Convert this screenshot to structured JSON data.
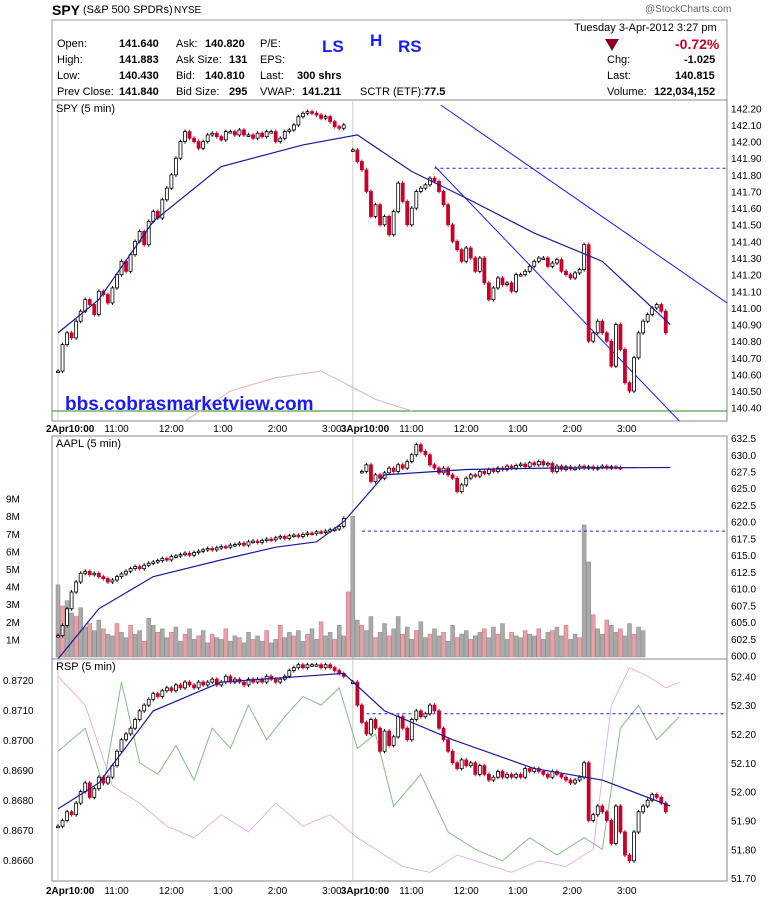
{
  "header": {
    "symbol": "SPY",
    "name": "(S&P 500 SPDRs)",
    "exchange": "NYSE",
    "watermark": "@StockCharts.com",
    "datetime": "Tuesday  3-Apr-2012  3:27 pm",
    "change_pct": "-0.72%",
    "annotations": {
      "ls": "LS",
      "h": "H",
      "rs": "RS"
    },
    "fields": {
      "open_label": "Open:",
      "open": "141.640",
      "high_label": "High:",
      "high": "141.883",
      "low_label": "Low:",
      "low": "140.430",
      "prev_label": "Prev Close:",
      "prev": "141.840",
      "ask_label": "Ask:",
      "ask": "140.820",
      "asksize_label": "Ask Size:",
      "asksize": "131",
      "bid_label": "Bid:",
      "bid": "140.810",
      "bidsize_label": "Bid Size:",
      "bidsize": "295",
      "pe_label": "P/E:",
      "pe": "",
      "eps_label": "EPS:",
      "eps": "",
      "last_label": "Last:",
      "last_shares": "300 shrs",
      "vwap_label": "VWAP:",
      "vwap": "141.211",
      "sctr_label": "SCTR (ETF):",
      "sctr": "77.5",
      "chg_label": "Chg:",
      "chg": "-1.025",
      "last2_label": "Last:",
      "last2": "140.815",
      "volume_label": "Volume:",
      "volume": "122,034,152"
    }
  },
  "colors": {
    "up": "#000000",
    "down": "#c8002a",
    "ma": "#1a1a9a",
    "trend": "#1a1aff",
    "vol_up": "#aaaaaa",
    "vol_down": "#e8a0a8",
    "green": "#2a8a2a",
    "pink_line": "#cc66cc",
    "green_line": "#88bb88"
  },
  "chart_data": [
    {
      "type": "candlestick",
      "label": "SPY (5 min)",
      "watermark_text": "bbs.cobrasmarketview.com",
      "y_ticks": [
        "142.20",
        "142.10",
        "142.00",
        "141.90",
        "141.80",
        "141.70",
        "141.60",
        "141.50",
        "141.40",
        "141.30",
        "141.20",
        "141.10",
        "141.00",
        "140.90",
        "140.80",
        "140.70",
        "140.60",
        "140.50",
        "140.40"
      ],
      "ylim": [
        140.32,
        142.25
      ],
      "x_tick_labels": [
        "2Apr10:00",
        "11:00",
        "12:00",
        "1:00",
        "2:00",
        "3:00",
        "3Apr10:00",
        "11:00",
        "12:00",
        "1:00",
        "2:00",
        "3:00"
      ],
      "closes_day1": [
        140.62,
        140.78,
        140.85,
        140.82,
        140.92,
        140.98,
        141.05,
        141.02,
        140.96,
        141.1,
        141.08,
        141.03,
        141.12,
        141.2,
        141.28,
        141.22,
        141.32,
        141.4,
        141.46,
        141.38,
        141.52,
        141.58,
        141.54,
        141.65,
        141.72,
        141.8,
        141.9,
        142.0,
        142.06,
        142.02,
        142.0,
        141.96,
        142.0,
        142.04,
        142.05,
        142.03,
        142.01,
        142.06,
        142.06,
        142.04,
        142.07,
        142.04,
        142.04,
        142.02,
        142.05,
        142.03,
        142.06,
        142.06,
        142.0,
        142.02,
        142.06,
        142.07,
        142.1,
        142.15,
        142.17,
        142.18,
        142.17,
        142.16,
        142.14,
        142.15,
        142.12,
        142.09,
        142.08,
        142.1
      ],
      "closes_day2": [
        141.95,
        141.88,
        141.83,
        141.7,
        141.55,
        141.62,
        141.5,
        141.55,
        141.44,
        141.58,
        141.75,
        141.64,
        141.5,
        141.6,
        141.7,
        141.72,
        141.74,
        141.78,
        141.76,
        141.7,
        141.62,
        141.5,
        141.4,
        141.35,
        141.28,
        141.36,
        141.3,
        141.22,
        141.3,
        141.15,
        141.05,
        141.12,
        141.18,
        141.14,
        141.15,
        141.1,
        141.2,
        141.2,
        141.22,
        141.25,
        141.28,
        141.3,
        141.3,
        141.25,
        141.27,
        141.29,
        141.22,
        141.2,
        141.18,
        141.21,
        141.23,
        141.38,
        140.8,
        140.85,
        140.92,
        140.85,
        140.8,
        140.65,
        140.9,
        140.75,
        140.55,
        140.5,
        140.7,
        140.85,
        140.92,
        140.96,
        141.0,
        141.02,
        140.98,
        140.85
      ],
      "ma_x": [
        0,
        15,
        35,
        60,
        90,
        110,
        130,
        150,
        175,
        200,
        225
      ],
      "ma_y": [
        140.85,
        141.05,
        141.52,
        141.85,
        141.98,
        142.04,
        141.82,
        141.66,
        141.45,
        141.28,
        140.9
      ],
      "hline": 141.84,
      "dashed_level": 141.84,
      "channel_upper": [
        [
          135,
          142.22
        ],
        [
          225,
          141.03
        ]
      ],
      "channel_lower": [
        [
          133,
          141.85
        ],
        [
          222,
          140.32
        ]
      ]
    },
    {
      "type": "candlestick",
      "label": "AAPL (5 min)",
      "y_ticks": [
        "632.5",
        "630.0",
        "627.5",
        "625.0",
        "622.5",
        "620.0",
        "617.5",
        "615.0",
        "612.5",
        "610.0",
        "607.5",
        "605.0",
        "602.5",
        "600.0"
      ],
      "ylim": [
        599.5,
        632.8
      ],
      "vol_ticks": [
        "9M",
        "8M",
        "7M",
        "6M",
        "5M",
        "4M",
        "3M",
        "2M",
        "1M"
      ],
      "vol_max": 9.6,
      "volumes": [
        4.1,
        2.9,
        3.2,
        2.5,
        2.3,
        2.8,
        1.7,
        1.9,
        1.5,
        2.1,
        1.6,
        1.3,
        1.2,
        1.9,
        1.4,
        1.1,
        1.8,
        1.3,
        1.5,
        0.9,
        2.2,
        1.8,
        1.4,
        1.6,
        1.1,
        1.4,
        1.7,
        0.9,
        1.3,
        1.6,
        1.0,
        1.2,
        1.5,
        0.8,
        1.3,
        1.1,
        1.0,
        1.6,
        0.9,
        1.2,
        1.1,
        0.8,
        1.4,
        1.0,
        1.2,
        0.9,
        1.5,
        0.8,
        1.0,
        1.8,
        1.1,
        1.4,
        1.2,
        1.5,
        0.9,
        1.3,
        1.6,
        1.0,
        2.0,
        1.2,
        1.4,
        1.0,
        1.8,
        1.2,
        3.7,
        8.0,
        2.1,
        1.8,
        1.5,
        2.3,
        1.1,
        1.4,
        1.9,
        1.2,
        1.6,
        2.3,
        1.3,
        1.7,
        1.0,
        1.5,
        2.0,
        1.1,
        1.3,
        1.6,
        1.2,
        1.4,
        0.9,
        1.8,
        1.1,
        1.3,
        1.5,
        1.0,
        1.2,
        1.4,
        1.6,
        1.1,
        1.7,
        1.3,
        1.9,
        1.0,
        1.4,
        1.2,
        1.1,
        1.5,
        1.3,
        1.2,
        1.6,
        1.0,
        1.4,
        1.5,
        1.7,
        1.2,
        1.8,
        1.0,
        1.3,
        1.1,
        7.5,
        5.4,
        2.4,
        1.6,
        1.3,
        2.1,
        1.8,
        1.4,
        1.6,
        1.2,
        1.9,
        1.3,
        1.7,
        1.5
      ],
      "closes_day1": [
        603.0,
        604.5,
        607.0,
        609.5,
        611.0,
        612.3,
        612.6,
        612.1,
        612.3,
        611.8,
        611.5,
        611.0,
        611.3,
        611.8,
        612.2,
        612.6,
        613.0,
        613.3,
        613.0,
        613.5,
        613.8,
        614.0,
        614.2,
        614.5,
        614.3,
        614.8,
        614.9,
        615.1,
        615.3,
        615.0,
        615.4,
        615.6,
        615.8,
        616.0,
        615.8,
        616.1,
        616.3,
        616.2,
        616.5,
        616.6,
        616.8,
        616.5,
        617.0,
        617.1,
        616.9,
        617.2,
        617.4,
        617.3,
        617.6,
        617.8,
        617.5,
        617.9,
        618.0,
        617.8,
        618.1,
        618.3,
        618.2,
        618.5,
        618.4,
        618.6,
        618.8,
        618.9,
        619.3,
        620.5
      ],
      "closes_day2": [
        627.5,
        628.5,
        626.0,
        627.0,
        626.5,
        627.3,
        628.0,
        627.5,
        628.5,
        628.0,
        629.0,
        630.0,
        631.5,
        630.5,
        630.0,
        628.5,
        628.0,
        627.3,
        628.0,
        627.0,
        626.5,
        624.5,
        625.5,
        626.5,
        627.0,
        626.8,
        627.5,
        627.2,
        627.8,
        627.5,
        628.0,
        627.8,
        628.3,
        628.0,
        628.4,
        628.6,
        628.2,
        628.8,
        628.5,
        629.0,
        628.5,
        628.7,
        627.5,
        628.3,
        627.8,
        628.2,
        627.9,
        628.0,
        628.3,
        628.0,
        628.2,
        627.9,
        628.1,
        628.3,
        628.0,
        628.2,
        628.1,
        628.0
      ],
      "ma_x": [
        0,
        15,
        35,
        60,
        80,
        95,
        105,
        120,
        150,
        180,
        225
      ],
      "ma_y": [
        599.5,
        607.0,
        611.8,
        614.3,
        616.2,
        617.0,
        620.0,
        627.0,
        627.8,
        628.0,
        628.1
      ],
      "dashed_level": 618.6
    },
    {
      "type": "candlestick",
      "label": "RSP (5 min)",
      "y_ticks_left": [
        "0.8720",
        "0.8710",
        "0.8700",
        "0.8690",
        "0.8680",
        "0.8670",
        "0.8660"
      ],
      "y_ticks_right": [
        "52.40",
        "52.30",
        "52.20",
        "52.10",
        "52.00",
        "51.90",
        "51.80",
        "51.70"
      ],
      "ylim": [
        51.69,
        52.46
      ],
      "closes_day1": [
        51.88,
        51.9,
        51.93,
        51.92,
        51.96,
        52.0,
        52.03,
        51.98,
        52.01,
        52.05,
        52.03,
        52.05,
        52.09,
        52.14,
        52.18,
        52.2,
        52.22,
        52.25,
        52.28,
        52.3,
        52.32,
        52.34,
        52.33,
        52.35,
        52.36,
        52.35,
        52.37,
        52.36,
        52.38,
        52.37,
        52.36,
        52.38,
        52.37,
        52.38,
        52.39,
        52.37,
        52.38,
        52.4,
        52.38,
        52.39,
        52.38,
        52.37,
        52.39,
        52.38,
        52.39,
        52.38,
        52.4,
        52.39,
        52.38,
        52.39,
        52.4,
        52.42,
        52.43,
        52.44,
        52.43,
        52.44,
        52.44,
        52.44,
        52.43,
        52.44,
        52.43,
        52.42,
        52.41,
        52.4
      ],
      "closes_day2": [
        52.38,
        52.3,
        52.24,
        52.2,
        52.25,
        52.22,
        52.14,
        52.21,
        52.16,
        52.19,
        52.26,
        52.22,
        52.18,
        52.25,
        52.28,
        52.26,
        52.27,
        52.3,
        52.28,
        52.22,
        52.18,
        52.14,
        52.1,
        52.08,
        52.11,
        52.09,
        52.1,
        52.06,
        52.09,
        52.06,
        52.04,
        52.05,
        52.07,
        52.05,
        52.06,
        52.05,
        52.06,
        52.05,
        52.08,
        52.07,
        52.08,
        52.07,
        52.06,
        52.05,
        52.07,
        52.06,
        52.05,
        52.04,
        52.03,
        52.04,
        52.05,
        52.1,
        51.9,
        51.92,
        51.95,
        51.93,
        51.9,
        51.82,
        51.95,
        51.86,
        51.78,
        51.76,
        51.86,
        51.93,
        51.95,
        51.97,
        51.99,
        51.98,
        51.96,
        51.93
      ],
      "ma_x": [
        0,
        15,
        35,
        60,
        90,
        105,
        120,
        145,
        175,
        200,
        225
      ],
      "ma_y": [
        51.94,
        52.03,
        52.28,
        52.38,
        52.4,
        52.41,
        52.28,
        52.18,
        52.08,
        52.04,
        51.95
      ],
      "dashed_level": 52.27
    }
  ]
}
